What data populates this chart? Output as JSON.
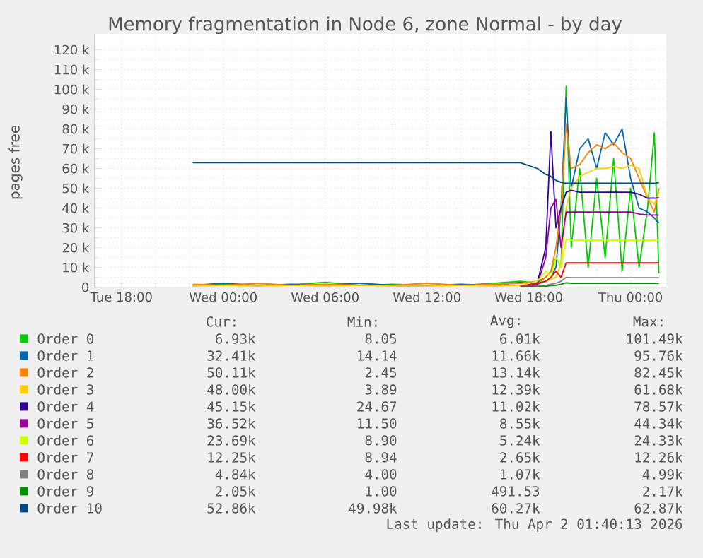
{
  "chart_data": {
    "type": "line",
    "title": "Memory fragmentation in Node 6, zone Normal - by day",
    "ylabel": "pages free",
    "x": [
      "2026-03-31T22:12",
      "2026-04-01T00:00",
      "2026-04-01T02:00",
      "2026-04-01T04:00",
      "2026-04-01T06:00",
      "2026-04-01T08:00",
      "2026-04-01T10:00",
      "2026-04-01T12:00",
      "2026-04-01T14:00",
      "2026-04-01T16:00",
      "2026-04-01T17:30",
      "2026-04-01T18:30",
      "2026-04-01T19:00",
      "2026-04-01T19:18",
      "2026-04-01T19:36",
      "2026-04-01T19:54",
      "2026-04-01T20:12",
      "2026-04-01T20:30",
      "2026-04-01T21:00",
      "2026-04-01T21:30",
      "2026-04-01T22:00",
      "2026-04-01T22:30",
      "2026-04-01T23:00",
      "2026-04-01T23:30",
      "2026-04-02T00:00",
      "2026-04-02T00:30",
      "2026-04-02T01:00",
      "2026-04-02T01:24",
      "2026-04-02T01:40"
    ],
    "xlim": [
      "2026-03-31T16:24",
      "2026-04-02T02:06"
    ],
    "xticks": [
      {
        "value": "2026-03-31T18:00",
        "label": "Tue 18:00"
      },
      {
        "value": "2026-04-01T00:00",
        "label": "Wed 00:00"
      },
      {
        "value": "2026-04-01T06:00",
        "label": "Wed 06:00"
      },
      {
        "value": "2026-04-01T12:00",
        "label": "Wed 12:00"
      },
      {
        "value": "2026-04-01T18:00",
        "label": "Wed 18:00"
      },
      {
        "value": "2026-04-02T00:00",
        "label": "Thu 00:00"
      }
    ],
    "ylim": [
      0,
      128000
    ],
    "yticks": [
      0,
      {
        "value": 10000,
        "label": "10 k"
      },
      {
        "value": 20000,
        "label": "20 k"
      },
      {
        "value": 30000,
        "label": "30 k"
      },
      {
        "value": 40000,
        "label": "40 k"
      },
      {
        "value": 50000,
        "label": "50 k"
      },
      {
        "value": 60000,
        "label": "60 k"
      },
      {
        "value": 70000,
        "label": "70 k"
      },
      {
        "value": 80000,
        "label": "80 k"
      },
      {
        "value": 90000,
        "label": "90 k"
      },
      {
        "value": 100000,
        "label": "100 k"
      },
      {
        "value": 110000,
        "label": "110 k"
      },
      {
        "value": 120000,
        "label": "120 k"
      }
    ],
    "grid": true,
    "legend": "bottom",
    "marker": "none",
    "line_style": "solid",
    "series": [
      {
        "name": "Order 0",
        "color": "#00cc00",
        "values": [
          1000,
          1500,
          1000,
          1200,
          2500,
          1000,
          1500,
          1000,
          1000,
          2000,
          3000,
          2000,
          5000,
          8000,
          15000,
          10000,
          101500,
          20000,
          60000,
          10000,
          55000,
          15000,
          65000,
          8000,
          50000,
          10000,
          40000,
          78000,
          7000
        ]
      },
      {
        "name": "Order 1",
        "color": "#0066b3",
        "values": [
          1000,
          2000,
          1000,
          1500,
          1000,
          2000,
          1000,
          1000,
          1500,
          1000,
          2500,
          1500,
          3000,
          5000,
          10000,
          40000,
          95800,
          50000,
          70000,
          75000,
          60000,
          78000,
          72000,
          80000,
          55000,
          40000,
          38000,
          35000,
          32400
        ]
      },
      {
        "name": "Order 2",
        "color": "#ff8000",
        "values": [
          1500,
          1000,
          2000,
          1000,
          1500,
          1000,
          1000,
          2000,
          1000,
          1500,
          2000,
          3000,
          5000,
          8000,
          20000,
          40000,
          82500,
          60000,
          62000,
          68000,
          72000,
          70000,
          73000,
          68000,
          65000,
          55000,
          45000,
          38000,
          50100
        ]
      },
      {
        "name": "Order 3",
        "color": "#ffcc00",
        "values": [
          500,
          1000,
          500,
          1000,
          500,
          1000,
          500,
          500,
          1000,
          500,
          1000,
          2000,
          3000,
          4000,
          5000,
          12000,
          40000,
          50000,
          56000,
          58000,
          60000,
          60000,
          61000,
          60000,
          61700,
          60000,
          45000,
          42000,
          48000
        ]
      },
      {
        "name": "Order 4",
        "color": "#330099",
        "values": [
          null,
          null,
          null,
          null,
          null,
          null,
          null,
          null,
          null,
          null,
          500,
          2000,
          20000,
          78600,
          30000,
          40000,
          48000,
          49000,
          48000,
          48000,
          48000,
          48000,
          48000,
          48000,
          48000,
          47000,
          45000,
          45000,
          45200
        ]
      },
      {
        "name": "Order 5",
        "color": "#990099",
        "values": [
          null,
          null,
          null,
          null,
          null,
          null,
          null,
          null,
          null,
          null,
          500,
          1000,
          15000,
          40000,
          44300,
          20000,
          38000,
          38000,
          38000,
          38000,
          38000,
          38000,
          38000,
          38000,
          38000,
          37000,
          36500,
          36500,
          36500
        ]
      },
      {
        "name": "Order 6",
        "color": "#ccff00",
        "values": [
          null,
          null,
          null,
          null,
          null,
          null,
          null,
          null,
          null,
          null,
          500,
          3000,
          8000,
          5000,
          15000,
          10000,
          24300,
          23700,
          23700,
          23700,
          23700,
          23700,
          23700,
          23700,
          23700,
          23700,
          23700,
          23700,
          23700
        ]
      },
      {
        "name": "Order 7",
        "color": "#ff0000",
        "values": [
          null,
          null,
          null,
          null,
          null,
          null,
          null,
          null,
          null,
          null,
          500,
          2000,
          3000,
          5000,
          8000,
          5000,
          12300,
          12300,
          12300,
          12300,
          12300,
          12300,
          12300,
          12300,
          12300,
          12300,
          12300,
          12300,
          12300
        ]
      },
      {
        "name": "Order 8",
        "color": "#808080",
        "values": [
          null,
          null,
          null,
          null,
          null,
          null,
          null,
          null,
          null,
          null,
          300,
          500,
          1000,
          1500,
          2000,
          3000,
          5000,
          4800,
          4800,
          4800,
          4800,
          4800,
          4800,
          4800,
          4800,
          4800,
          4800,
          4800,
          4800
        ]
      },
      {
        "name": "Order 9",
        "color": "#008f00",
        "values": [
          null,
          null,
          null,
          null,
          null,
          null,
          null,
          null,
          null,
          null,
          200,
          300,
          500,
          800,
          1000,
          1500,
          2200,
          2000,
          2000,
          2000,
          2000,
          2000,
          2000,
          2000,
          2000,
          2000,
          2000,
          2000,
          2000
        ]
      },
      {
        "name": "Order 10",
        "color": "#00487d",
        "values": [
          62900,
          62900,
          62900,
          62900,
          62900,
          62900,
          62900,
          62900,
          62900,
          62900,
          62900,
          60000,
          57000,
          56000,
          54000,
          53000,
          52500,
          52500,
          52500,
          52500,
          52500,
          52500,
          52500,
          52500,
          52500,
          52500,
          52500,
          52500,
          52900
        ]
      }
    ],
    "annotations": [
      "Cur:",
      "Min:",
      "Avg:",
      "Max:",
      "6.93k",
      "8.05",
      "6.01k",
      "101.49k",
      "32.41k",
      "14.14",
      "11.66k",
      "95.76k",
      "50.11k",
      "2.45",
      "13.14k",
      "82.45k",
      "48.00k",
      "3.89",
      "12.39k",
      "61.68k",
      "45.15k",
      "24.67",
      "11.02k",
      "78.57k",
      "36.52k",
      "11.50",
      "8.55k",
      "44.34k",
      "23.69k",
      "8.90",
      "5.24k",
      "24.33k",
      "12.25k",
      "8.94",
      "2.65k",
      "12.26k",
      "4.84k",
      "4.00",
      "1.07k",
      "4.99k",
      "2.05k",
      "1.00",
      "491.53",
      "2.17k",
      "52.86k",
      "49.98k",
      "60.27k",
      "62.87k",
      "Last update: Thu Apr  2 01:40:13 2026"
    ]
  }
}
